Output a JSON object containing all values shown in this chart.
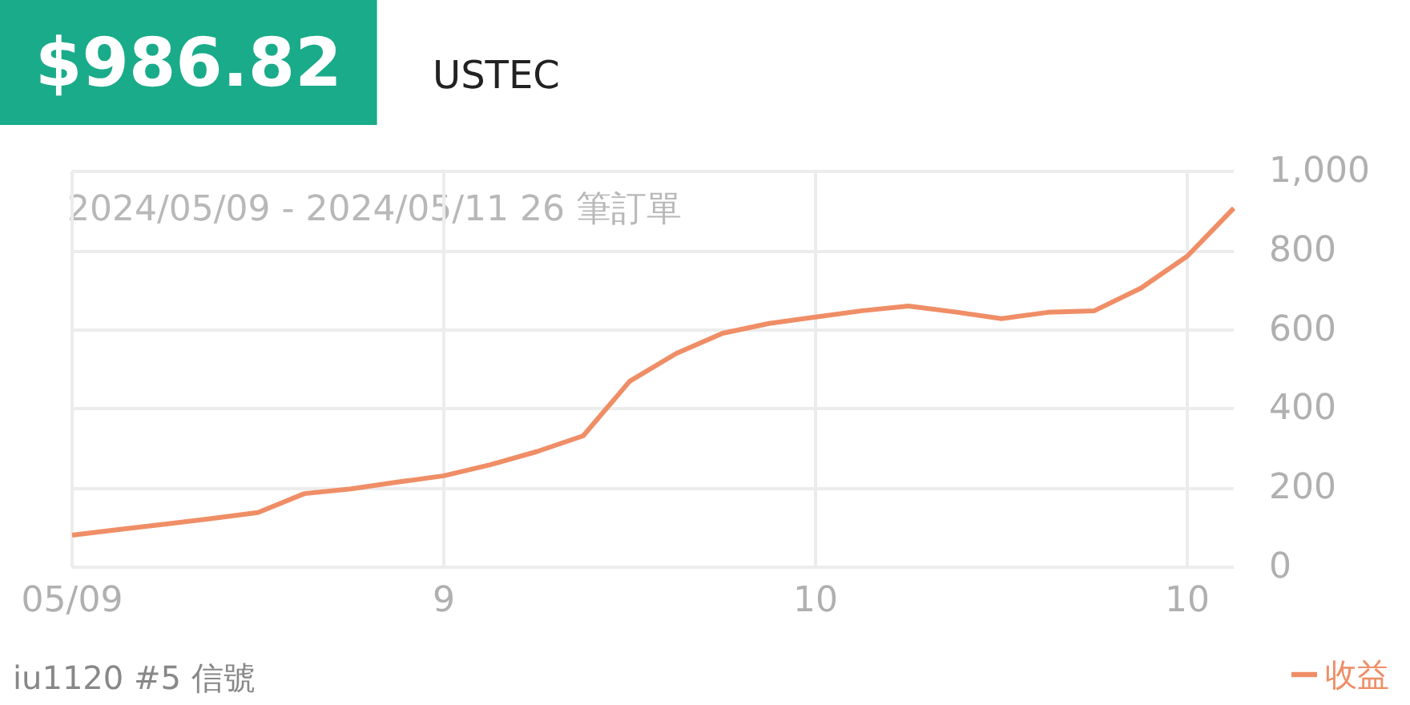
{
  "chart_data": {
    "type": "line",
    "title": "$986.82",
    "subtitle": "USTEC",
    "annotations": [
      "2024/05/09 - 2024/05/11 26 筆訂單",
      "iu1120 #5 信號"
    ],
    "categories": [
      "05/09",
      null,
      null,
      null,
      null,
      null,
      null,
      null,
      "9",
      null,
      null,
      null,
      null,
      null,
      null,
      null,
      "10",
      null,
      null,
      null,
      null,
      null,
      null,
      null,
      "10",
      null
    ],
    "series": [
      {
        "name": "收益",
        "color": "#ef8e66",
        "values": [
          81,
          95,
          109,
          123,
          138,
          186,
          198,
          215,
          231,
          259,
          292,
          332,
          470,
          540,
          591,
          616,
          632,
          648,
          660,
          645,
          628,
          644,
          648,
          705,
          786,
          907
        ]
      }
    ],
    "ylim": [
      0,
      1000
    ],
    "yticks": [
      0,
      200,
      400,
      600,
      800,
      {
        "value": 1000,
        "label": "1,000"
      }
    ],
    "grid": true,
    "legend": "bottom right",
    "marker": "none"
  }
}
